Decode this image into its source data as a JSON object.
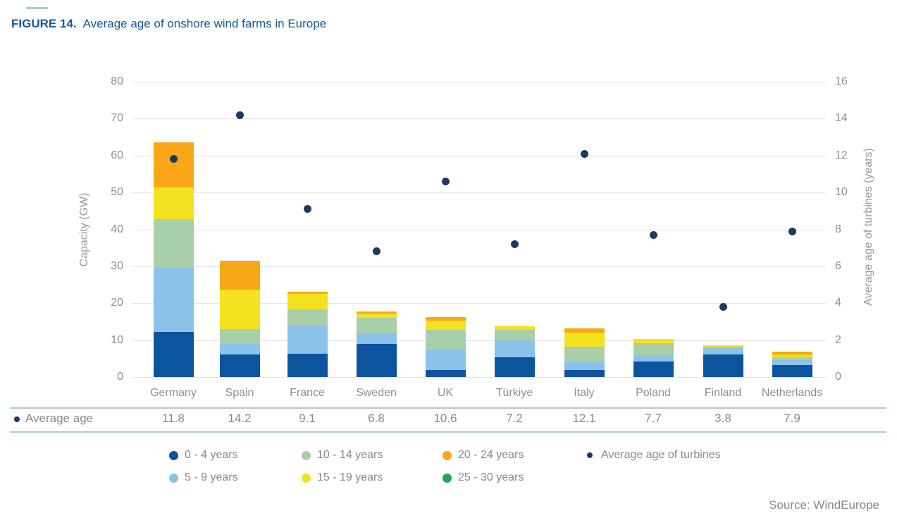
{
  "header": {
    "figure_label": "FIGURE 14.",
    "title": "Average age of onshore wind farms in Europe"
  },
  "footer": {
    "source": "Source: WindEurope"
  },
  "colors": {
    "title_blue": "#15599F",
    "accent_rule_green": "#A9CDB4",
    "table_line_green": "#AECFB9",
    "gridline": "#E3E3E3",
    "axis_text": "#8F8F8F",
    "legend_text": "#8A8A8A"
  },
  "chart_data": {
    "type": "bar",
    "subtype": "stacked-bars-with-scatter-overlay",
    "title": "Average age of onshore wind farms in Europe",
    "grid": true,
    "legend_position": "bottom",
    "categories": [
      "Germany",
      "Spain",
      "France",
      "Sweden",
      "UK",
      "Türkiye",
      "Italy",
      "Poland",
      "Finland",
      "Netherlands"
    ],
    "series": [
      {
        "name": "0 - 4 years",
        "color": "#0D549E",
        "values": [
          12.3,
          6.2,
          6.3,
          8.9,
          2.0,
          5.4,
          1.9,
          4.2,
          6.2,
          3.2
        ]
      },
      {
        "name": "5 - 9 years",
        "color": "#8AC2EA",
        "values": [
          17.2,
          2.8,
          7.4,
          3.0,
          5.5,
          4.5,
          2.1,
          1.7,
          1.7,
          1.3
        ]
      },
      {
        "name": "10 - 14 years",
        "color": "#A9CFA9",
        "values": [
          13.3,
          4.0,
          4.7,
          4.2,
          5.3,
          2.9,
          4.3,
          3.3,
          0.3,
          0.8
        ]
      },
      {
        "name": "15 - 19 years",
        "color": "#F2E21F",
        "values": [
          8.5,
          10.7,
          4.2,
          1.1,
          2.5,
          0.9,
          3.8,
          1.2,
          0.3,
          0.9
        ]
      },
      {
        "name": "20 - 24 years",
        "color": "#F9A719",
        "values": [
          12.2,
          7.8,
          0.5,
          0.5,
          1.0,
          0,
          1.0,
          0,
          0,
          0.6
        ]
      },
      {
        "name": "25 - 30 years",
        "color": "#2AA353",
        "values": [
          0,
          0,
          0,
          0,
          0,
          0,
          0,
          0,
          0,
          0
        ]
      }
    ],
    "totals_gw": [
      63.5,
      31.5,
      23.1,
      17.7,
      16.3,
      13.7,
      13.1,
      10.4,
      8.5,
      6.8
    ],
    "scatter_series": {
      "name": "Average age of turbines",
      "color": "#1B3A63",
      "axis": "right",
      "values": [
        11.8,
        14.2,
        9.1,
        6.8,
        10.6,
        7.2,
        12.1,
        7.7,
        3.8,
        7.9
      ]
    },
    "left_axis": {
      "label": "Capacity (GW)",
      "min": 0,
      "max": 80,
      "step": 10,
      "ticks": [
        "0",
        "10",
        "20",
        "30",
        "40",
        "50",
        "60",
        "70",
        "80"
      ]
    },
    "right_axis": {
      "label": "Average age of turbines (years)",
      "min": 0,
      "max": 16,
      "step": 2,
      "ticks": [
        "0",
        "2",
        "4",
        "6",
        "8",
        "10",
        "12",
        "14",
        "16"
      ]
    }
  },
  "avg_row": {
    "label": "Average age",
    "values": [
      "11.8",
      "14.2",
      "9.1",
      "6.8",
      "10.6",
      "7.2",
      "12.1",
      "7.7",
      "3.8",
      "7.9"
    ]
  },
  "legend": {
    "rows": [
      [
        {
          "label": "0 - 4 years",
          "color": "#0D549E",
          "type": "dot"
        },
        {
          "label": "10 - 14 years",
          "color": "#A9CFA9",
          "type": "dot"
        },
        {
          "label": "20 - 24 years",
          "color": "#F9A719",
          "type": "dot"
        },
        {
          "label": "Average age of turbines",
          "color": "#1B3A63",
          "type": "small-dot"
        }
      ],
      [
        {
          "label": "5 - 9 years",
          "color": "#8AC2EA",
          "type": "dot"
        },
        {
          "label": "15 - 19 years",
          "color": "#F2E21F",
          "type": "dot"
        },
        {
          "label": "25 - 30 years",
          "color": "#2AA353",
          "type": "dot"
        }
      ]
    ]
  }
}
